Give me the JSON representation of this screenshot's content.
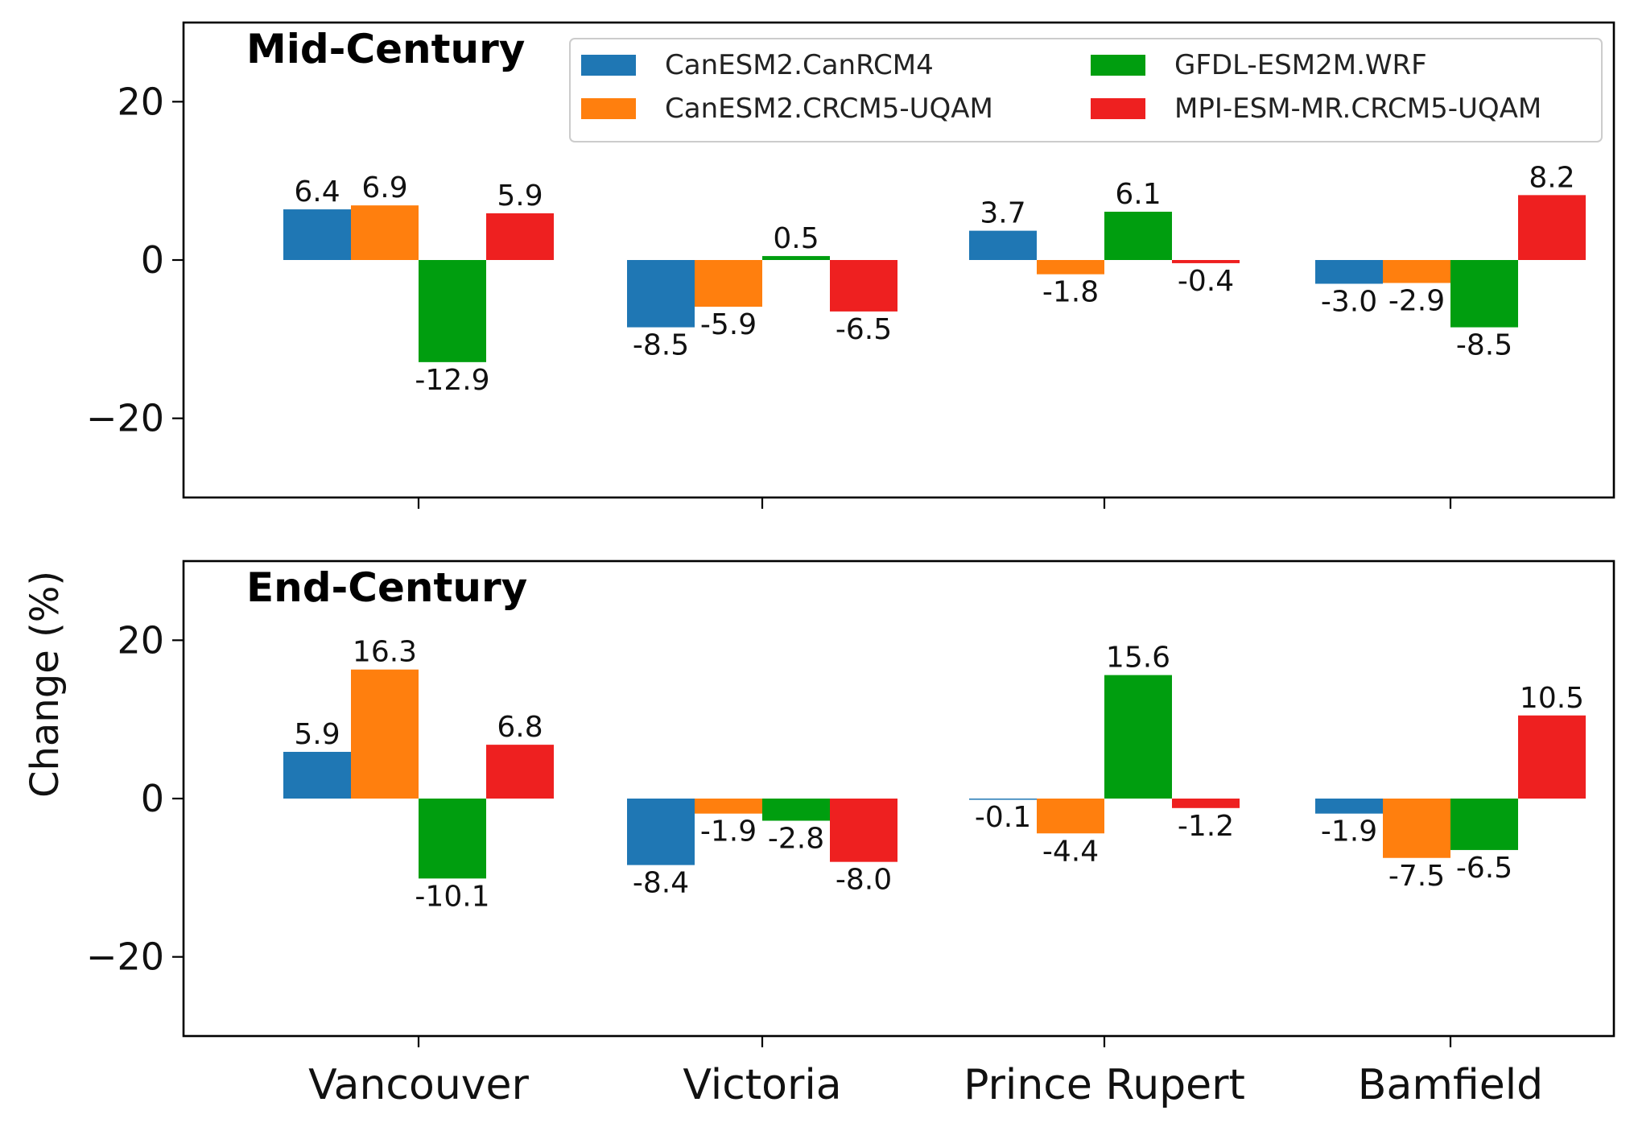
{
  "chart_data": {
    "type": "bar",
    "ylabel": "Change (%)",
    "ylim": [
      -30,
      30
    ],
    "yticks": [
      -20,
      0,
      20
    ],
    "ytick_labels": [
      "−20",
      "0",
      "20"
    ],
    "categories": [
      "Vancouver",
      "Victoria",
      "Prince Rupert",
      "Bamfield"
    ],
    "legend": {
      "placement": "top-right of upper panel",
      "entries": [
        {
          "name": "CanESM2.CanRCM4",
          "color": "#1f77b4"
        },
        {
          "name": "CanESM2.CRCM5-UQAM",
          "color": "#ff7f0e"
        },
        {
          "name": "GFDL-ESM2M.WRF",
          "color": "#009e0f"
        },
        {
          "name": "MPI-ESM-MR.CRCM5-UQAM",
          "color": "#ee2020"
        }
      ]
    },
    "panels": [
      {
        "title": "Mid-Century",
        "series": [
          {
            "name": "CanESM2.CanRCM4",
            "values": [
              6.4,
              -8.5,
              3.7,
              -3.0
            ],
            "labels": [
              "6.4",
              "-8.5",
              "3.7",
              "-3.0"
            ]
          },
          {
            "name": "CanESM2.CRCM5-UQAM",
            "values": [
              6.9,
              -5.9,
              -1.8,
              -2.9
            ],
            "labels": [
              "6.9",
              "-5.9",
              "-1.8",
              "-2.9"
            ]
          },
          {
            "name": "GFDL-ESM2M.WRF",
            "values": [
              -12.9,
              0.5,
              6.1,
              -8.5
            ],
            "labels": [
              "-12.9",
              "0.5",
              "6.1",
              "-8.5"
            ]
          },
          {
            "name": "MPI-ESM-MR.CRCM5-UQAM",
            "values": [
              5.9,
              -6.5,
              -0.4,
              8.2
            ],
            "labels": [
              "5.9",
              "-6.5",
              "-0.4",
              "8.2"
            ]
          }
        ]
      },
      {
        "title": "End-Century",
        "series": [
          {
            "name": "CanESM2.CanRCM4",
            "values": [
              5.9,
              -8.4,
              -0.1,
              -1.9
            ],
            "labels": [
              "5.9",
              "-8.4",
              "-0.1",
              "-1.9"
            ]
          },
          {
            "name": "CanESM2.CRCM5-UQAM",
            "values": [
              16.3,
              -1.9,
              -4.4,
              -7.5
            ],
            "labels": [
              "16.3",
              "-1.9",
              "-4.4",
              "-7.5"
            ]
          },
          {
            "name": "GFDL-ESM2M.WRF",
            "values": [
              -10.1,
              -2.8,
              15.6,
              -6.5
            ],
            "labels": [
              "-10.1",
              "-2.8",
              "15.6",
              "-6.5"
            ]
          },
          {
            "name": "MPI-ESM-MR.CRCM5-UQAM",
            "values": [
              6.8,
              -8.0,
              -1.2,
              10.5
            ],
            "labels": [
              "6.8",
              "-8.0",
              "-1.2",
              "10.5"
            ]
          }
        ]
      }
    ]
  }
}
